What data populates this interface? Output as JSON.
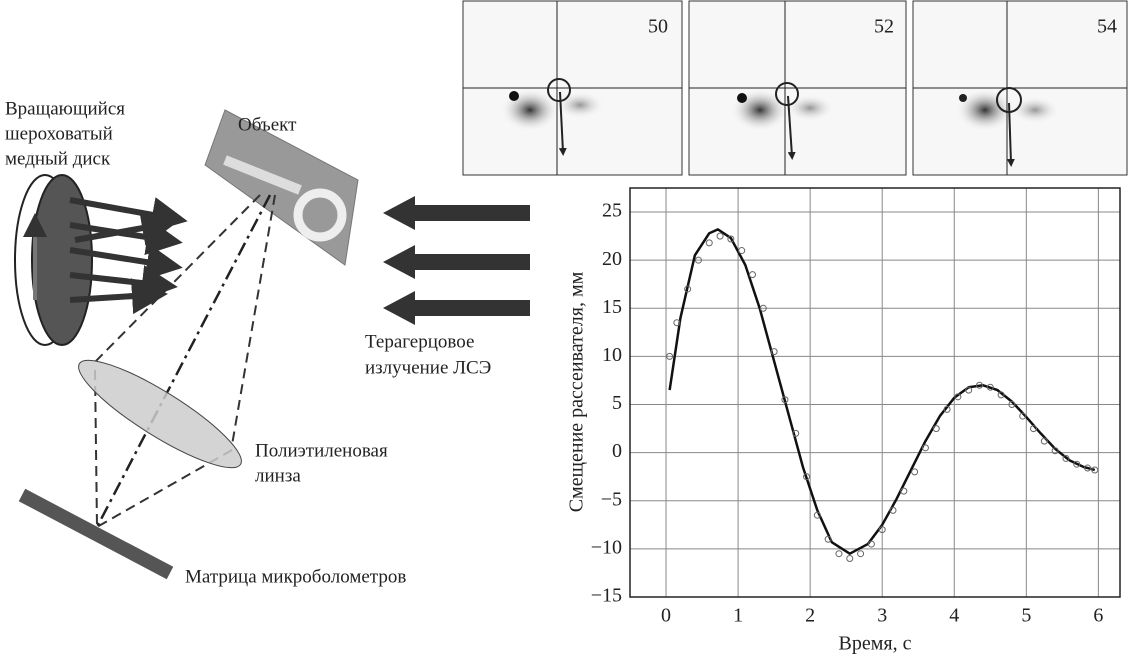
{
  "diagram": {
    "disk_label": [
      "Вращающийся",
      "шероховатый",
      "медный диск"
    ],
    "object_label": "Объект",
    "radiation_label": [
      "Терагерцовое",
      "излучение ЛСЭ"
    ],
    "lens_label": [
      "Полиэтиленовая",
      "линза"
    ],
    "detector_label": "Матрица микроболометров",
    "frames": [
      "50",
      "52",
      "54"
    ]
  },
  "chart_data": {
    "type": "line",
    "xlabel": "Время, с",
    "ylabel": "Смещение рассеивателя, мм",
    "xlim": [
      -0.5,
      6.3
    ],
    "ylim": [
      -15,
      27.5
    ],
    "xticks": [
      0,
      1,
      2,
      3,
      4,
      5,
      6
    ],
    "yticks": [
      25,
      20,
      15,
      10,
      5,
      0,
      {
        "value": -5,
        "label": "−5"
      },
      {
        "value": -10,
        "label": "−10"
      },
      {
        "value": -15,
        "label": "−15"
      }
    ],
    "grid": true,
    "series": [
      {
        "style": "line",
        "color": "#111111",
        "x": [
          0.05,
          0.2,
          0.4,
          0.6,
          0.72,
          0.9,
          1.1,
          1.3,
          1.5,
          1.7,
          1.9,
          2.1,
          2.3,
          2.55,
          2.8,
          3.0,
          3.2,
          3.4,
          3.6,
          3.8,
          4.0,
          4.2,
          4.4,
          4.6,
          4.8,
          5.0,
          5.2,
          5.4,
          5.6,
          5.8,
          5.95
        ],
        "values": [
          6.5,
          14,
          20.5,
          22.8,
          23.2,
          22.3,
          19.5,
          15,
          9.5,
          4,
          -1.5,
          -6,
          -9.3,
          -10.5,
          -9.5,
          -7.5,
          -4.8,
          -1.8,
          1.2,
          3.8,
          5.7,
          6.8,
          7.0,
          6.5,
          5.3,
          3.7,
          2.0,
          0.4,
          -0.8,
          -1.5,
          -1.8
        ]
      },
      {
        "style": "markers",
        "color": "#666666",
        "x": [
          0.05,
          0.15,
          0.3,
          0.45,
          0.6,
          0.75,
          0.9,
          1.05,
          1.2,
          1.35,
          1.5,
          1.65,
          1.8,
          1.95,
          2.1,
          2.25,
          2.4,
          2.55,
          2.7,
          2.85,
          3.0,
          3.15,
          3.3,
          3.45,
          3.6,
          3.75,
          3.9,
          4.05,
          4.2,
          4.35,
          4.5,
          4.65,
          4.8,
          4.95,
          5.1,
          5.25,
          5.4,
          5.55,
          5.7,
          5.85,
          5.95
        ],
        "values": [
          10,
          13.5,
          17,
          20,
          21.8,
          22.5,
          22.2,
          21,
          18.5,
          15,
          10.5,
          5.5,
          2,
          -2.5,
          -6.5,
          -9,
          -10.5,
          -11,
          -10.5,
          -9.5,
          -8,
          -6,
          -4,
          -2,
          0.5,
          2.5,
          4.5,
          5.8,
          6.5,
          7,
          6.8,
          6,
          5,
          3.8,
          2.5,
          1.2,
          0.2,
          -0.6,
          -1.2,
          -1.6,
          -1.8
        ]
      }
    ]
  }
}
